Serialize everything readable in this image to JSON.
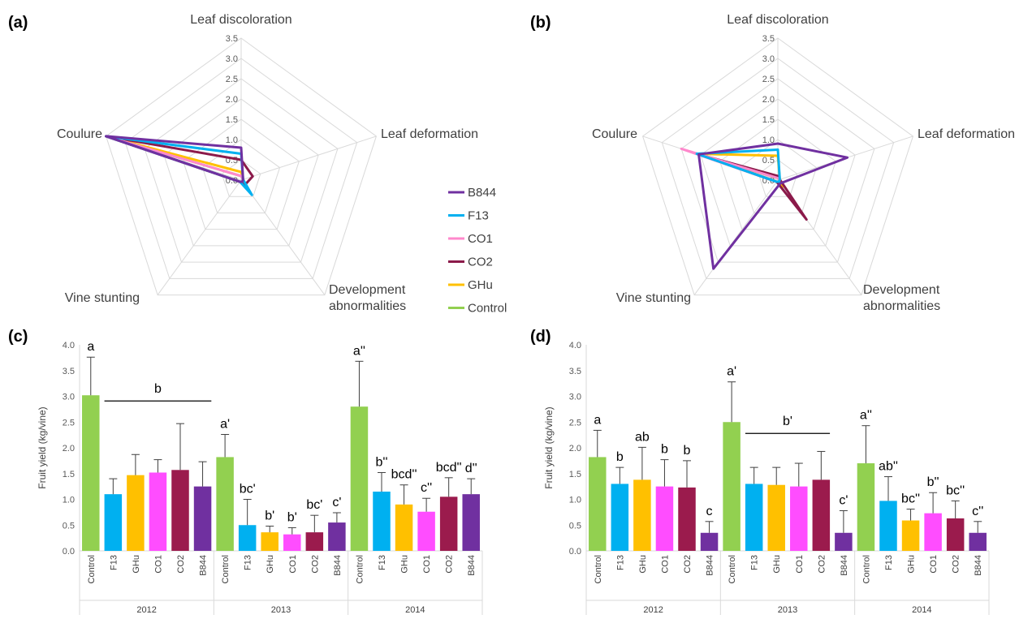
{
  "colors": {
    "Control": "#92d050",
    "F13": "#00b0f0",
    "GHu": "#ffc000",
    "CO1": "#ff4dff",
    "CO2": "#9b1b4d",
    "B844": "#7030a0",
    "CO1_line": "#ff88cc",
    "CO2_line": "#8b1a4a",
    "grid": "#d9d9d9",
    "axis_text": "#595959"
  },
  "chart_data": [
    {
      "panel": "(a)",
      "type": "radar",
      "axes": [
        "Leaf discoloration",
        "Leaf deformation",
        "Development abnormalities",
        "Vine stunting",
        "Coulure"
      ],
      "axis_label_lines": [
        [
          "Leaf discoloration"
        ],
        [
          "Leaf deformation"
        ],
        [
          "Development",
          "abnormalities"
        ],
        [
          "Vine stunting"
        ],
        [
          "Coulure"
        ]
      ],
      "rlim": [
        0,
        3.5
      ],
      "ticks": [
        "0.0",
        "0.5",
        "1.0",
        "1.5",
        "2.0",
        "2.5",
        "3.0",
        "3.5"
      ],
      "series": [
        {
          "name": "Control",
          "values": [
            0.1,
            0.05,
            0.05,
            0.05,
            3.5
          ]
        },
        {
          "name": "GHu",
          "values": [
            0.2,
            0.05,
            0.25,
            0.05,
            3.5
          ]
        },
        {
          "name": "CO2",
          "values": [
            0.5,
            0.3,
            0.15,
            0.05,
            3.5
          ]
        },
        {
          "name": "CO1",
          "values": [
            0.1,
            0.05,
            0.05,
            0.05,
            3.5
          ]
        },
        {
          "name": "F13",
          "values": [
            0.65,
            0.05,
            0.45,
            0.05,
            3.5
          ]
        },
        {
          "name": "B844",
          "values": [
            0.8,
            0.05,
            0.05,
            0.05,
            3.5
          ]
        }
      ]
    },
    {
      "panel": "(b)",
      "type": "radar",
      "axes": [
        "Leaf discoloration",
        "Leaf deformation",
        "Development abnormalities",
        "Vine stunting",
        "Coulure"
      ],
      "axis_label_lines": [
        [
          "Leaf discoloration"
        ],
        [
          "Leaf deformation"
        ],
        [
          "Development",
          "abnormalities"
        ],
        [
          "Vine stunting"
        ],
        [
          "Coulure"
        ]
      ],
      "rlim": [
        0,
        3.5
      ],
      "ticks": [
        "0.0",
        "0.5",
        "1.0",
        "1.5",
        "2.0",
        "2.5",
        "3.0",
        "3.5"
      ],
      "series": [
        {
          "name": "Control",
          "values": [
            0.05,
            0.05,
            0.15,
            0.05,
            2.1
          ]
        },
        {
          "name": "GHu",
          "values": [
            0.6,
            0.05,
            0.2,
            0.05,
            2.1
          ]
        },
        {
          "name": "CO2",
          "values": [
            0.1,
            0.05,
            1.2,
            0.05,
            2.1
          ]
        },
        {
          "name": "CO1",
          "values": [
            0.05,
            0.05,
            0.05,
            0.05,
            2.5
          ]
        },
        {
          "name": "F13",
          "values": [
            0.75,
            0.05,
            0.05,
            0.05,
            2.1
          ]
        },
        {
          "name": "B844",
          "values": [
            0.9,
            1.8,
            0.1,
            2.7,
            2.05
          ]
        }
      ]
    },
    {
      "panel": "(c)",
      "type": "bar",
      "ylabel": "Fruit yield (kg/vine)",
      "ylim": [
        0,
        4
      ],
      "yticks": [
        "0.0",
        "0.5",
        "1.0",
        "1.5",
        "2.0",
        "2.5",
        "3.0",
        "3.5",
        "4.0"
      ],
      "groups": [
        {
          "label": "2012",
          "bars": [
            {
              "cat": "Control",
              "value": 3.02,
              "err": 0.74,
              "sig": "a"
            },
            {
              "cat": "F13",
              "value": 1.1,
              "err": 0.3,
              "sig": ""
            },
            {
              "cat": "GHu",
              "value": 1.47,
              "err": 0.4,
              "sig": ""
            },
            {
              "cat": "CO1",
              "value": 1.52,
              "err": 0.25,
              "sig": ""
            },
            {
              "cat": "CO2",
              "value": 1.57,
              "err": 0.9,
              "sig": ""
            },
            {
              "cat": "B844",
              "value": 1.25,
              "err": 0.48,
              "sig": ""
            }
          ]
        },
        {
          "label": "2013",
          "bars": [
            {
              "cat": "Control",
              "value": 1.82,
              "err": 0.44,
              "sig": "a'"
            },
            {
              "cat": "F13",
              "value": 0.5,
              "err": 0.5,
              "sig": "bc'"
            },
            {
              "cat": "GHu",
              "value": 0.36,
              "err": 0.12,
              "sig": "b'"
            },
            {
              "cat": "CO1",
              "value": 0.32,
              "err": 0.13,
              "sig": "b'"
            },
            {
              "cat": "CO2",
              "value": 0.36,
              "err": 0.33,
              "sig": "bc'"
            },
            {
              "cat": "B844",
              "value": 0.55,
              "err": 0.19,
              "sig": "c'"
            }
          ]
        },
        {
          "label": "2014",
          "bars": [
            {
              "cat": "Control",
              "value": 2.8,
              "err": 0.88,
              "sig": "a''"
            },
            {
              "cat": "F13",
              "value": 1.15,
              "err": 0.37,
              "sig": "b''"
            },
            {
              "cat": "GHu",
              "value": 0.9,
              "err": 0.38,
              "sig": "bcd''"
            },
            {
              "cat": "CO1",
              "value": 0.76,
              "err": 0.26,
              "sig": "c''"
            },
            {
              "cat": "CO2",
              "value": 1.05,
              "err": 0.37,
              "sig": "bcd''"
            },
            {
              "cat": "B844",
              "value": 1.1,
              "err": 0.3,
              "sig": "d''"
            }
          ]
        }
      ],
      "brackets": [
        {
          "label": "b",
          "group": 0,
          "from": 1,
          "to": 5,
          "y": 2.91
        }
      ]
    },
    {
      "panel": "(d)",
      "type": "bar",
      "ylabel": "Fruit yield (kg/vine)",
      "ylim": [
        0,
        4
      ],
      "yticks": [
        "0.0",
        "0.5",
        "1.0",
        "1.5",
        "2.0",
        "2.5",
        "3.0",
        "3.5",
        "4.0"
      ],
      "groups": [
        {
          "label": "2012",
          "bars": [
            {
              "cat": "Control",
              "value": 1.82,
              "err": 0.52,
              "sig": "a"
            },
            {
              "cat": "F13",
              "value": 1.3,
              "err": 0.32,
              "sig": "b"
            },
            {
              "cat": "GHu",
              "value": 1.38,
              "err": 0.63,
              "sig": "ab"
            },
            {
              "cat": "CO1",
              "value": 1.25,
              "err": 0.52,
              "sig": "b"
            },
            {
              "cat": "CO2",
              "value": 1.23,
              "err": 0.52,
              "sig": "b"
            },
            {
              "cat": "B844",
              "value": 0.35,
              "err": 0.22,
              "sig": "c"
            }
          ]
        },
        {
          "label": "2013",
          "bars": [
            {
              "cat": "Control",
              "value": 2.5,
              "err": 0.78,
              "sig": "a'"
            },
            {
              "cat": "F13",
              "value": 1.3,
              "err": 0.32,
              "sig": ""
            },
            {
              "cat": "GHu",
              "value": 1.28,
              "err": 0.34,
              "sig": ""
            },
            {
              "cat": "CO1",
              "value": 1.25,
              "err": 0.45,
              "sig": ""
            },
            {
              "cat": "CO2",
              "value": 1.38,
              "err": 0.55,
              "sig": ""
            },
            {
              "cat": "B844",
              "value": 0.35,
              "err": 0.43,
              "sig": "c'"
            }
          ]
        },
        {
          "label": "2014",
          "bars": [
            {
              "cat": "Control",
              "value": 1.7,
              "err": 0.73,
              "sig": "a''"
            },
            {
              "cat": "F13",
              "value": 0.97,
              "err": 0.47,
              "sig": "ab''"
            },
            {
              "cat": "GHu",
              "value": 0.59,
              "err": 0.22,
              "sig": "bc''"
            },
            {
              "cat": "CO1",
              "value": 0.73,
              "err": 0.4,
              "sig": "b''"
            },
            {
              "cat": "CO2",
              "value": 0.63,
              "err": 0.34,
              "sig": "bc''"
            },
            {
              "cat": "B844",
              "value": 0.35,
              "err": 0.22,
              "sig": "c''"
            }
          ]
        }
      ],
      "brackets": [
        {
          "label": "b'",
          "group": 1,
          "from": 1,
          "to": 4,
          "y": 2.28
        }
      ]
    }
  ],
  "legend": [
    "B844",
    "F13",
    "CO1",
    "CO2",
    "GHu",
    "Control"
  ]
}
